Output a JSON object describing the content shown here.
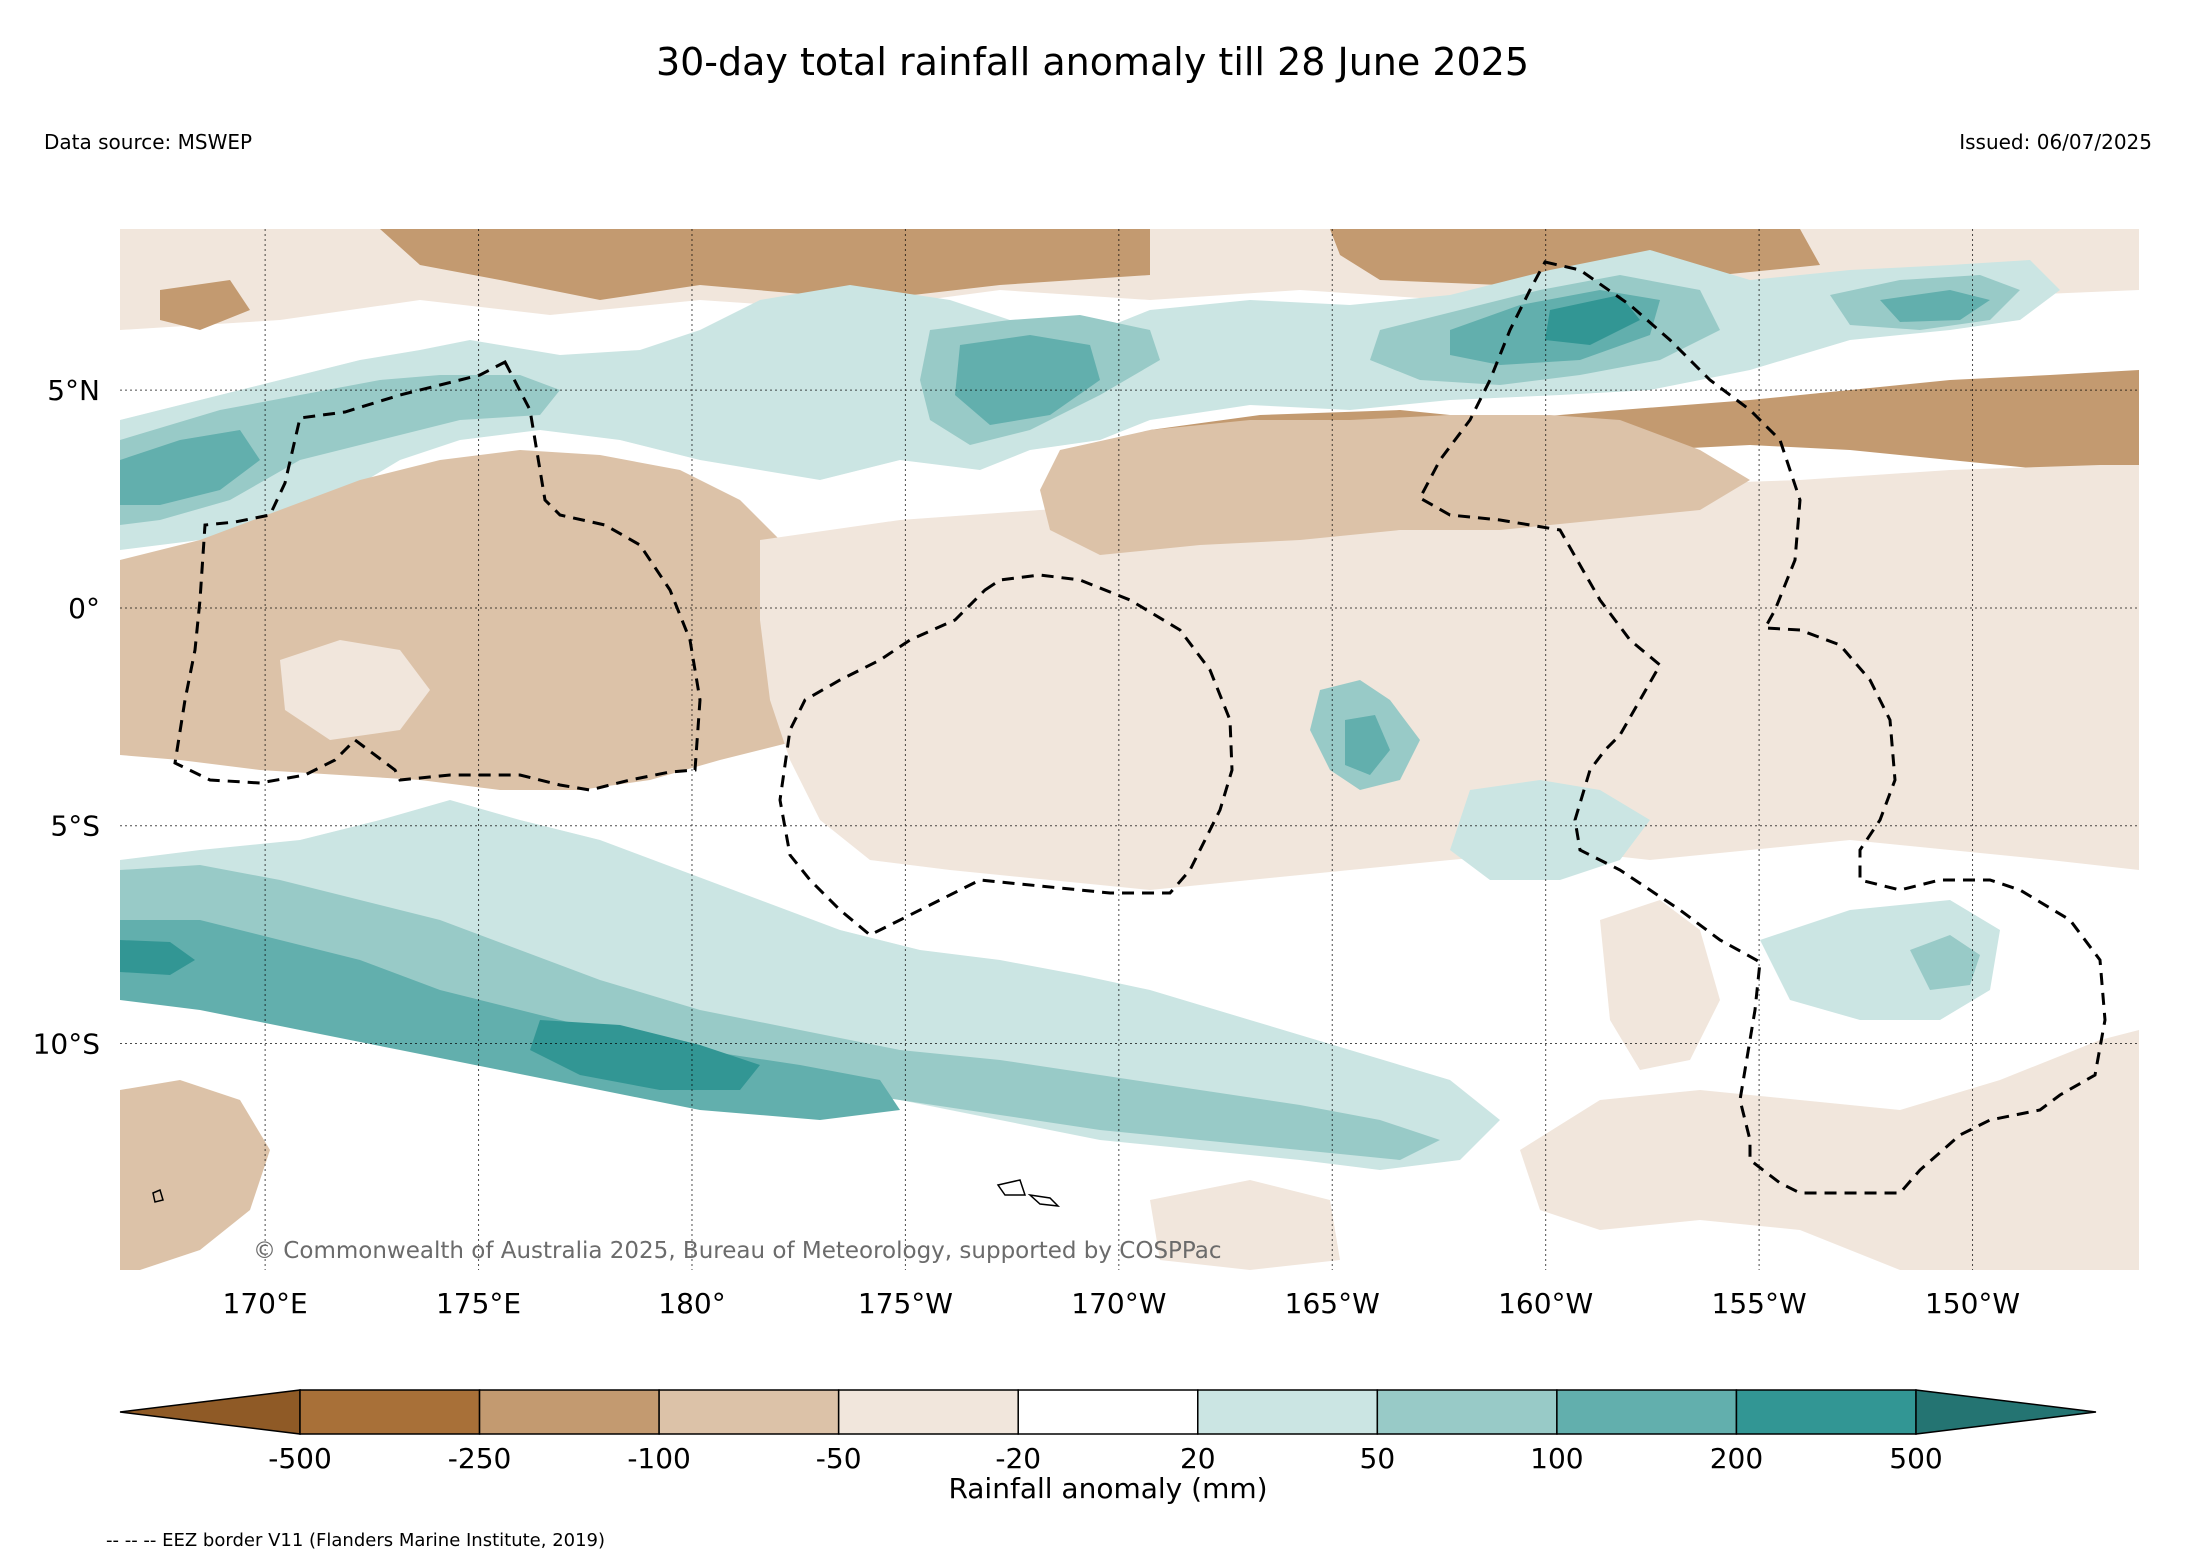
{
  "title": "30-day total rainfall anomaly till 28 June 2025",
  "data_source": "Data source: MSWEP",
  "issued": "Issued: 06/07/2025",
  "copyright": "© Commonwealth of Australia 2025, Bureau of Meteorology, supported by COSPPac",
  "footnote": "-- -- -- EEZ border V11 (Flanders Marine Institute, 2019)",
  "map": {
    "lon_range": [
      166.6,
      213.9
    ],
    "lat_range": [
      -15.2,
      8.7
    ],
    "grid": true,
    "lon_ticks": [
      {
        "value": 170,
        "label": "170°E"
      },
      {
        "value": 175,
        "label": "175°E"
      },
      {
        "value": 180,
        "label": "180°"
      },
      {
        "value": 185,
        "label": "175°W"
      },
      {
        "value": 190,
        "label": "170°W"
      },
      {
        "value": 195,
        "label": "165°W"
      },
      {
        "value": 200,
        "label": "160°W"
      },
      {
        "value": 205,
        "label": "155°W"
      },
      {
        "value": 210,
        "label": "150°W"
      }
    ],
    "lat_ticks": [
      {
        "value": 5,
        "label": "5°N"
      },
      {
        "value": 0,
        "label": "0°"
      },
      {
        "value": -5,
        "label": "5°S"
      },
      {
        "value": -10,
        "label": "10°S"
      }
    ]
  },
  "colorbar": {
    "label": "Rainfall anomaly (mm)",
    "tick_labels": [
      "-500",
      "-250",
      "-100",
      "-50",
      "-20",
      "20",
      "50",
      "100",
      "200",
      "500"
    ],
    "colors": [
      "#8f5a26",
      "#a87038",
      "#c39a70",
      "#dcc2a8",
      "#f1e6dc",
      "#ffffff",
      "#cbe5e3",
      "#98cac7",
      "#62afad",
      "#329694",
      "#247472"
    ]
  },
  "colors": {
    "very_dry": "#c39a70",
    "dry": "#dcc2a8",
    "slightly_dry": "#f1e6dc",
    "slightly_wet": "#cbe5e3",
    "wet": "#98cac7",
    "very_wet": "#62afad",
    "extremely_wet": "#329694"
  }
}
